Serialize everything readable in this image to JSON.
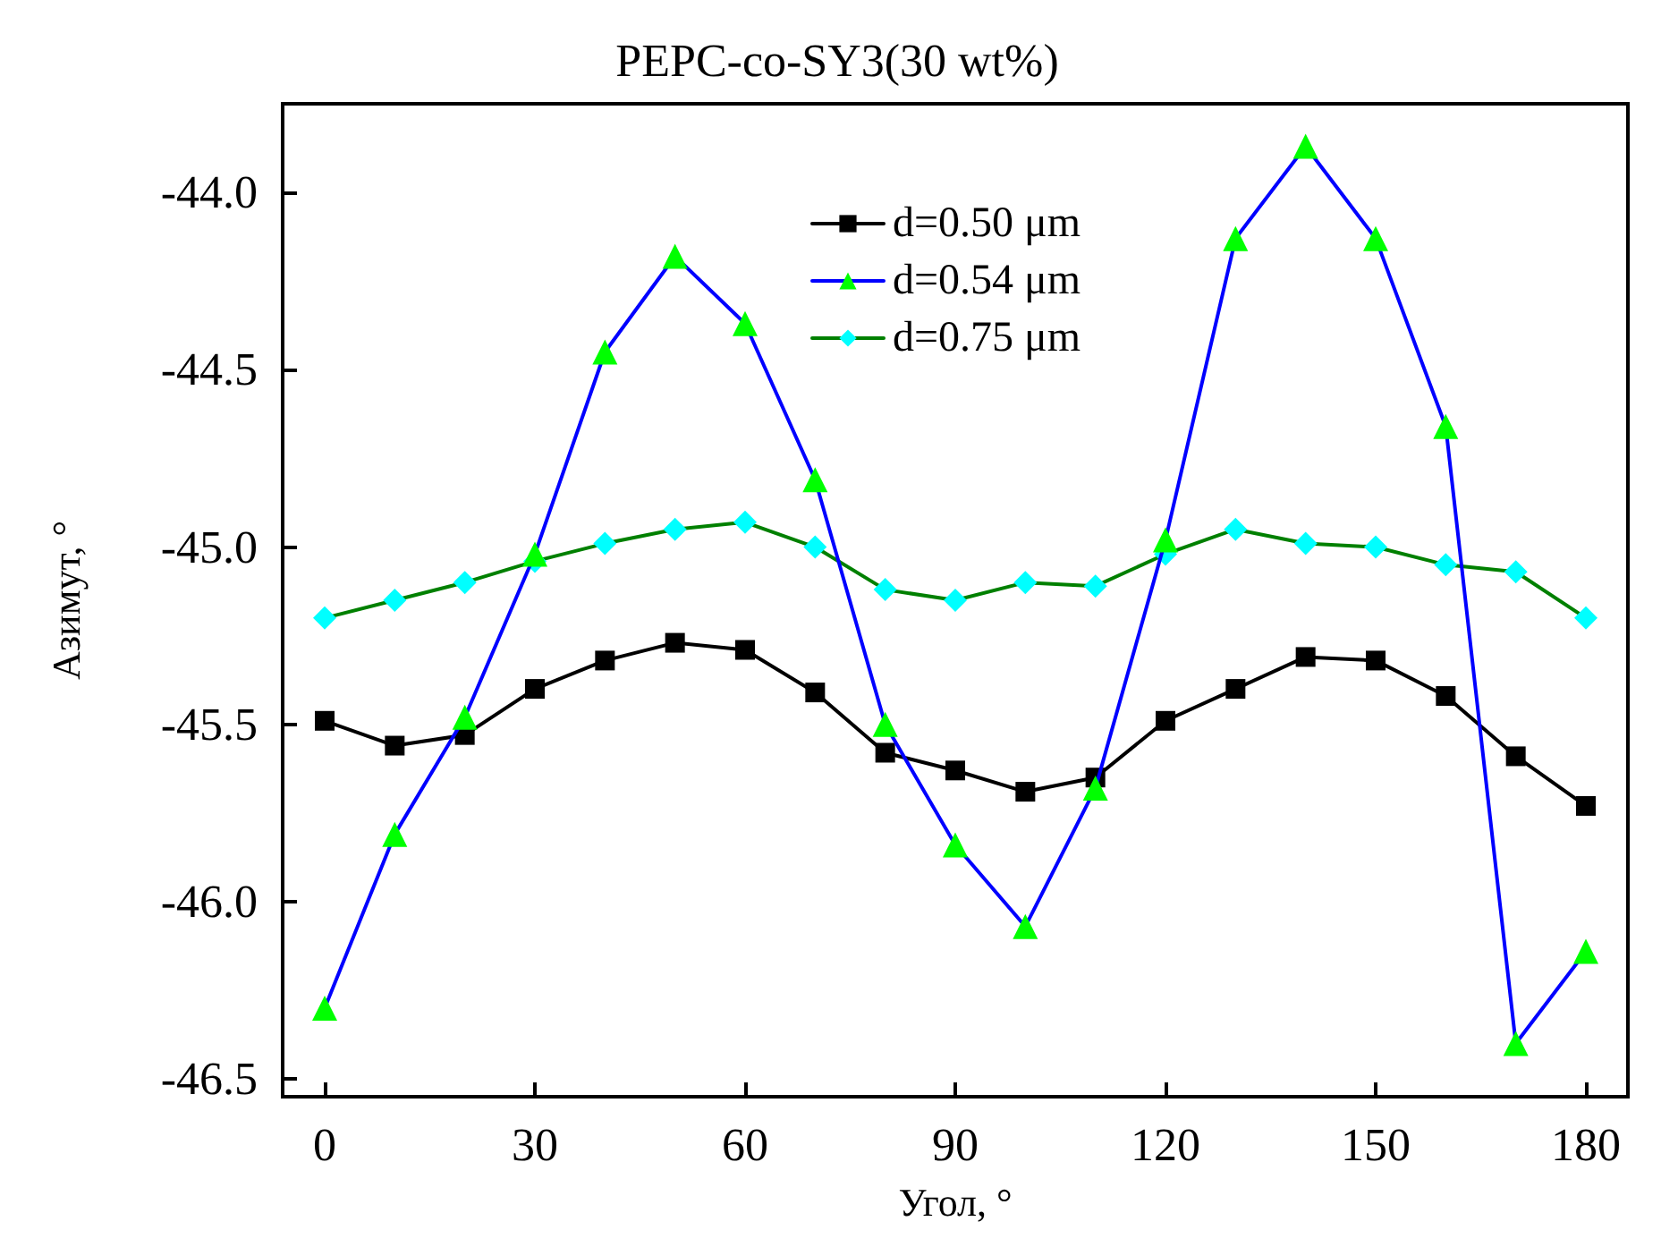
{
  "chart_data": {
    "type": "line",
    "title": "PEPC-co-SY3(30 wt%)",
    "xlabel": "Угол, °",
    "ylabel": "Азимут, °",
    "x": [
      0,
      10,
      20,
      30,
      40,
      50,
      60,
      70,
      80,
      90,
      100,
      110,
      120,
      130,
      140,
      150,
      160,
      170,
      180
    ],
    "series": [
      {
        "name": "d=0.50 μm",
        "color": "#000000",
        "marker": "square",
        "values": [
          -45.49,
          -45.56,
          -45.53,
          -45.4,
          -45.32,
          -45.27,
          -45.29,
          -45.41,
          -45.58,
          -45.63,
          -45.69,
          -45.65,
          -45.49,
          -45.4,
          -45.31,
          -45.32,
          -45.42,
          -45.59,
          -45.73
        ]
      },
      {
        "name": "d=0.54 μm",
        "color": "#0000ff",
        "colors": [
          "#00ff00",
          "#00ff00",
          "#00ff00",
          "#00ff00",
          "#00ff00",
          "#00ff00",
          "#00ff00",
          "#00ff00",
          "#00ff00",
          "#00ff00",
          "#00ff00",
          "#00ff00",
          "#00ff00",
          "#00ff00",
          "#00ff00",
          "#00ff00",
          "#00ff00",
          "#00ff00",
          "#00ff00"
        ],
        "marker": "triangle",
        "values": [
          -46.3,
          -45.81,
          -45.48,
          -45.02,
          -44.45,
          -44.18,
          -44.37,
          -44.81,
          -45.5,
          -45.84,
          -46.07,
          -45.68,
          -44.98,
          -44.13,
          -43.87,
          -44.13,
          -44.66,
          -46.4,
          -46.14
        ]
      },
      {
        "name": "d=0.75 μm",
        "color": "#008000",
        "colors": [
          "#00ffff",
          "#00ffff",
          "#00ffff",
          "#00ffff",
          "#00ffff",
          "#00ffff",
          "#00ffff",
          "#00ffff",
          "#00ffff",
          "#00ffff",
          "#00ffff",
          "#00ffff",
          "#00ffff",
          "#00ffff",
          "#00ffff",
          "#00ffff",
          "#00ffff",
          "#00ffff",
          "#00ffff"
        ],
        "marker": "diamond",
        "values": [
          -45.2,
          -45.15,
          -45.1,
          -45.04,
          -44.99,
          -44.95,
          -44.93,
          -45.0,
          -45.12,
          -45.15,
          -45.1,
          -45.11,
          -45.02,
          -44.95,
          -44.99,
          -45.0,
          -45.05,
          -45.07,
          -45.2
        ]
      }
    ],
    "xlim": [
      -6,
      186
    ],
    "xticks": [
      0,
      30,
      60,
      90,
      120,
      150,
      180
    ],
    "ylim": [
      -46.55,
      -43.75
    ],
    "yticks": [
      {
        "value": -46.5,
        "label": "-46.5"
      },
      {
        "value": -46,
        "label": "-46.0"
      },
      {
        "value": -45.5,
        "label": "-45.5"
      },
      {
        "value": -45,
        "label": "-45.0"
      },
      {
        "value": -44.5,
        "label": "-44.5"
      },
      {
        "value": -44,
        "label": "-44.0"
      }
    ],
    "legend": "top",
    "grid": false
  }
}
